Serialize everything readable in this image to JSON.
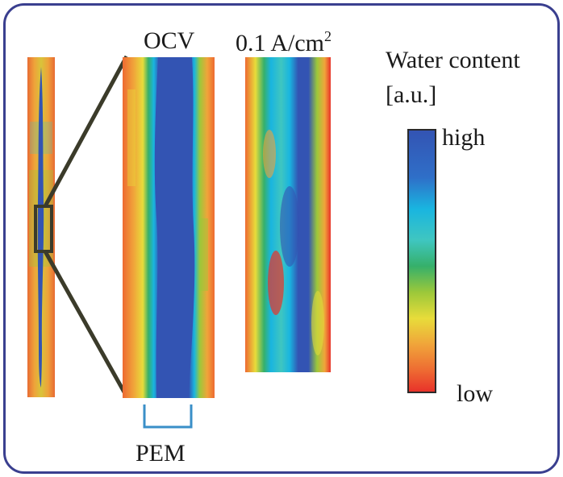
{
  "labels": {
    "ocv": "OCV",
    "current_value": "0.1 A/cm",
    "current_exp": "2",
    "legend_title_line1": "Water content",
    "legend_title_line2": "[a.u.]",
    "legend_high": "high",
    "legend_low": "low",
    "pem": "PEM"
  },
  "colors": {
    "frame": "#3a3f8f",
    "zoom_lines": "#3b3b2a",
    "pem_bracket": "#3a8fc8",
    "colormap_high": "#3355b5",
    "colormap_low": "#e83a2a"
  },
  "colormap_stops": [
    "#3354b3",
    "#2f6fc8",
    "#19b5e0",
    "#3fc6c0",
    "#36b06a",
    "#9cc83a",
    "#e8dc3a",
    "#f0a43a",
    "#ee6a32",
    "#e8322a"
  ]
}
